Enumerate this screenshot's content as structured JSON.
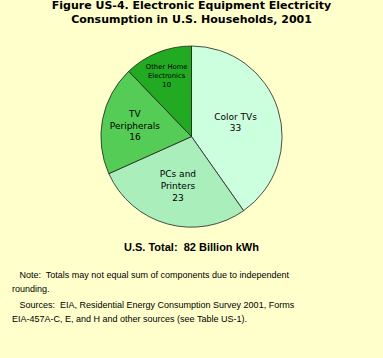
{
  "chart_data": {
    "type": "pie",
    "title": "Figure US-4. Electronic Equipment Electricity\nConsumption in U.S. Households, 2001",
    "categories": [
      "Color TVs",
      "PCs and\nPrinters",
      "TV\nPeripherals",
      "Other Home\nElectronics"
    ],
    "values": [
      33,
      23,
      16,
      10
    ],
    "data_labels": true,
    "colors": [
      "#ccffdd",
      "#aaeebb",
      "#55cc55",
      "#22aa22"
    ],
    "annotations": [
      "U.S. Total:  82 Billion kWh",
      "   Note:  Totals may not equal sum of components due to independent",
      "rounding.",
      "   Sources:  EIA, Residential Energy Consumption Survey 2001, Forms",
      "EIA-457A-C, E, and H and other sources (see Table US-1)."
    ]
  }
}
